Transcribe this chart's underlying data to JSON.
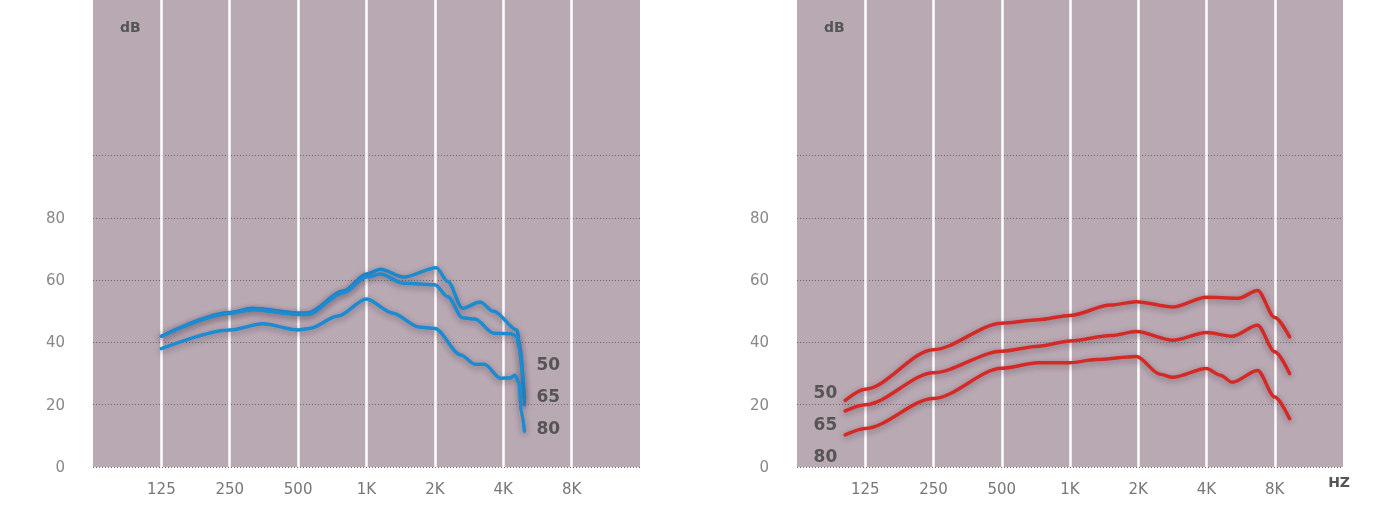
{
  "chart_data": [
    {
      "type": "line",
      "ylabel": "dB",
      "log": "x",
      "grid": true,
      "marker": "none",
      "line_style": "solid",
      "xlim": [
        62.5,
        16000
      ],
      "xticks": [
        125,
        250,
        500,
        {
          "value": 1000,
          "label": "1K"
        },
        {
          "value": 2000,
          "label": "2K"
        },
        {
          "value": 4000,
          "label": "4K"
        },
        {
          "value": 8000,
          "label": "8K"
        }
      ],
      "ylim": [
        0,
        150
      ],
      "yticks": [
        0,
        20,
        40,
        60,
        80,
        {
          "value": 100,
          "label": null
        }
      ],
      "series": [
        {
          "name": "50",
          "color": "#1a8bd0",
          "x": [
            125,
            250,
            314,
            500,
            550,
            792,
            1000,
            1150,
            1460,
            2030,
            2280,
            2650,
            3160,
            3630,
            4600,
            4700,
            4960
          ],
          "values": [
            42,
            49.6,
            51,
            49.5,
            49.5,
            56.5,
            62,
            63.5,
            61,
            64,
            59.6,
            51,
            53,
            50,
            44,
            41,
            22
          ]
        },
        {
          "name": "65",
          "color": "#1a8bd0",
          "x": [
            125,
            250,
            314,
            500,
            550,
            792,
            1000,
            1150,
            1460,
            2000,
            2280,
            2650,
            3000,
            3630,
            4300,
            4600,
            4700,
            4960
          ],
          "values": [
            42,
            49.3,
            50.5,
            49,
            49,
            56,
            61,
            62,
            59,
            58.5,
            54.7,
            47.9,
            47.5,
            43,
            42.8,
            42,
            38,
            20
          ]
        },
        {
          "name": "80",
          "color": "#1a8bd0",
          "x": [
            125,
            250,
            350,
            500,
            560,
            750,
            1000,
            1300,
            1700,
            2000,
            2600,
            3000,
            3300,
            3900,
            4300,
            4500,
            4700,
            4800,
            4960
          ],
          "values": [
            38,
            44,
            46,
            44,
            44.5,
            48.5,
            54,
            49.5,
            45,
            44.5,
            36,
            33,
            33,
            28.5,
            28.6,
            29.5,
            27,
            18,
            11.5
          ]
        }
      ]
    },
    {
      "type": "line",
      "ylabel": "dB",
      "xlabel": "HZ",
      "log": "x",
      "grid": true,
      "marker": "none",
      "line_style": "solid",
      "xlim": [
        62.5,
        16000
      ],
      "xticks": [
        125,
        250,
        500,
        {
          "value": 1000,
          "label": "1K"
        },
        {
          "value": 2000,
          "label": "2K"
        },
        {
          "value": 4000,
          "label": "4K"
        },
        {
          "value": 8000,
          "label": "8K"
        }
      ],
      "ylim": [
        0,
        150
      ],
      "yticks": [
        0,
        20,
        40,
        60,
        80,
        {
          "value": 100,
          "label": null
        }
      ],
      "series": [
        {
          "name": "50",
          "color": "#d42b27",
          "x": [
            102,
            125,
            250,
            500,
            725,
            1000,
            1510,
            1960,
            2840,
            4000,
            5540,
            6720,
            8000,
            9300
          ],
          "values": [
            21.4,
            25,
            37.7,
            46.2,
            47.3,
            48.7,
            52,
            53.1,
            51.4,
            54.5,
            54.2,
            56.7,
            48,
            41.8
          ]
        },
        {
          "name": "65",
          "color": "#d42b27",
          "x": [
            102,
            125,
            250,
            500,
            725,
            1000,
            1510,
            1960,
            2840,
            4000,
            5200,
            6720,
            8000,
            9300
          ],
          "values": [
            18,
            20,
            30.3,
            37.2,
            38.8,
            40.5,
            42.2,
            43.5,
            40.7,
            43.2,
            42,
            45.5,
            37,
            30
          ]
        },
        {
          "name": "80",
          "color": "#d42b27",
          "x": [
            102,
            125,
            250,
            500,
            725,
            1000,
            1300,
            1960,
            2500,
            2840,
            4000,
            4600,
            5200,
            6720,
            8000,
            9300
          ],
          "values": [
            10.3,
            12.4,
            22,
            31.7,
            33.5,
            33.5,
            34.5,
            35.5,
            29.8,
            28.8,
            31.6,
            29.5,
            27.2,
            31,
            22.5,
            15.5
          ]
        }
      ]
    }
  ]
}
